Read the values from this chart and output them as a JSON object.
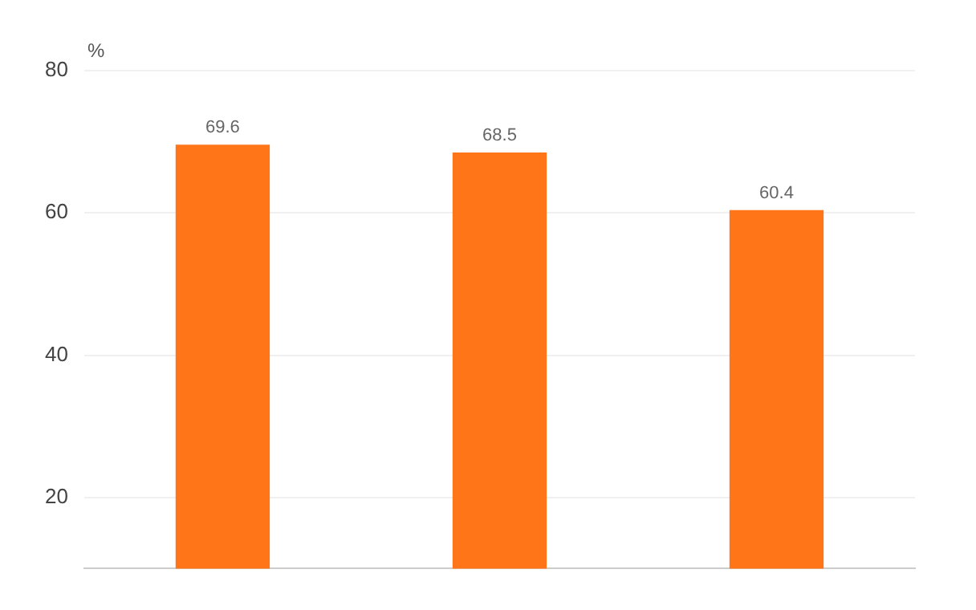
{
  "chart_data": {
    "type": "bar",
    "ylabel": "%",
    "categories": [
      null,
      null,
      null
    ],
    "series": [
      {
        "color": "#ff7518",
        "values": [
          69.6,
          68.5,
          60.4
        ]
      }
    ],
    "ylim": [
      10,
      80
    ],
    "yticks": [
      20,
      40,
      60,
      80
    ],
    "grid": "y",
    "data_labels": true,
    "legend": false
  }
}
